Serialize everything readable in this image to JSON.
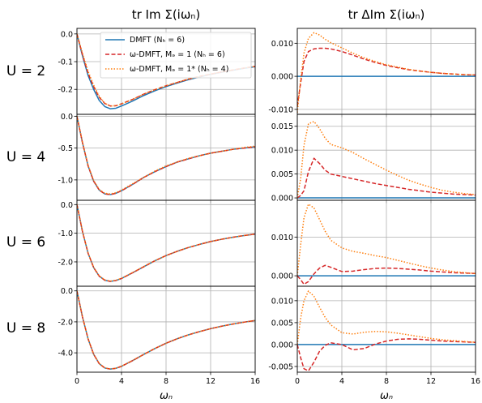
{
  "figure": {
    "col_titles": [
      "tr Im Σ(iωₙ)",
      "tr ΔIm Σ(iωₙ)"
    ],
    "row_labels": [
      "U = 2",
      "U = 4",
      "U = 6",
      "U = 8"
    ],
    "xlabel": "ωₙ"
  },
  "legend": {
    "placement": "top-right of first panel",
    "entries": [
      {
        "label": "DMFT (Nₕ = 6)",
        "color": "#1f77b4",
        "dash": "solid"
      },
      {
        "label": "ω-DMFT, Mₔ = 1 (Nₕ = 6)",
        "color": "#d62728",
        "dash": "dashed"
      },
      {
        "label": "ω-DMFT, Mₔ = 1* (Nₕ = 4)",
        "color": "#ff7f0e",
        "dash": "dotted"
      }
    ]
  },
  "chart_data": [
    {
      "type": "line",
      "panel": "U=2 tr Im Sigma",
      "grid": true,
      "xlim": [
        0,
        16
      ],
      "ylim": [
        -0.29,
        0.02
      ],
      "yticks": [
        0.0,
        -0.1,
        -0.2
      ],
      "ytick_labels": [
        "0.0",
        "-0.1",
        "-0.2"
      ],
      "xticks": [
        0,
        4,
        8,
        12,
        16
      ],
      "xtick_labels": [
        "0",
        "4",
        "8",
        "12",
        "16"
      ],
      "show_xticklabels": false,
      "x": [
        0,
        0.5,
        1,
        1.5,
        2,
        2.5,
        3,
        3.5,
        4,
        5,
        6,
        7,
        8,
        9,
        10,
        11,
        12,
        13,
        14,
        15,
        16
      ],
      "series": [
        {
          "name": "DMFT (Nₕ = 6)",
          "values": [
            0.0,
            -0.08,
            -0.15,
            -0.2,
            -0.24,
            -0.262,
            -0.27,
            -0.268,
            -0.26,
            -0.242,
            -0.222,
            -0.205,
            -0.19,
            -0.177,
            -0.165,
            -0.155,
            -0.146,
            -0.138,
            -0.131,
            -0.124,
            -0.118
          ]
        },
        {
          "name": "ω-DMFT, Mₔ = 1 (Nₕ = 6)",
          "values": [
            0.0,
            -0.076,
            -0.142,
            -0.19,
            -0.229,
            -0.251,
            -0.26,
            -0.259,
            -0.252,
            -0.236,
            -0.217,
            -0.201,
            -0.187,
            -0.175,
            -0.163,
            -0.153,
            -0.145,
            -0.137,
            -0.13,
            -0.123,
            -0.117
          ]
        },
        {
          "name": "ω-DMFT, Mₔ = 1* (Nₕ = 4)",
          "values": [
            0.0,
            -0.07,
            -0.135,
            -0.185,
            -0.225,
            -0.25,
            -0.26,
            -0.259,
            -0.252,
            -0.236,
            -0.217,
            -0.201,
            -0.187,
            -0.175,
            -0.163,
            -0.153,
            -0.145,
            -0.137,
            -0.13,
            -0.123,
            -0.117
          ]
        }
      ]
    },
    {
      "type": "line",
      "panel": "U=2 tr Delta Im Sigma",
      "grid": true,
      "xlim": [
        0,
        16
      ],
      "ylim": [
        -0.0115,
        0.0145
      ],
      "yticks": [
        0.01,
        0.0,
        -0.01
      ],
      "ytick_labels": [
        "0.010",
        "0.000",
        "-0.010"
      ],
      "xticks": [
        0,
        4,
        8,
        12,
        16
      ],
      "xtick_labels": [
        "0",
        "4",
        "8",
        "12",
        "16"
      ],
      "show_xticklabels": false,
      "x": [
        0,
        0.3,
        0.6,
        1,
        1.5,
        2,
        2.5,
        3,
        4,
        5,
        6,
        7,
        8,
        9,
        10,
        11,
        12,
        13,
        14,
        15,
        16
      ],
      "series": [
        {
          "name": "DMFT (Nₕ = 6)",
          "values": [
            0,
            0,
            0,
            0,
            0,
            0,
            0,
            0,
            0,
            0,
            0,
            0,
            0,
            0,
            0,
            0,
            0,
            0,
            0,
            0,
            0
          ]
        },
        {
          "name": "ω-DMFT, Mₔ = 1 (Nₕ = 6)",
          "values": [
            -0.009,
            -0.002,
            0.0045,
            0.0075,
            0.0083,
            0.0085,
            0.0085,
            0.0083,
            0.0075,
            0.0064,
            0.0052,
            0.0042,
            0.0033,
            0.0026,
            0.002,
            0.0016,
            0.0012,
            0.0009,
            0.0007,
            0.0005,
            0.0004
          ]
        },
        {
          "name": "ω-DMFT, Mₔ = 1* (Nₕ = 4)",
          "values": [
            -0.011,
            -0.001,
            0.007,
            0.0115,
            0.0132,
            0.0125,
            0.0112,
            0.0102,
            0.0086,
            0.007,
            0.0056,
            0.0045,
            0.0035,
            0.0028,
            0.0021,
            0.0016,
            0.0012,
            0.0009,
            0.0007,
            0.0005,
            0.0004
          ]
        }
      ]
    },
    {
      "type": "line",
      "panel": "U=4 tr Im Sigma",
      "grid": true,
      "xlim": [
        0,
        16
      ],
      "ylim": [
        -1.32,
        0.03
      ],
      "yticks": [
        0.0,
        -0.5,
        -1.0
      ],
      "ytick_labels": [
        "0.0",
        "-0.5",
        "-1.0"
      ],
      "xticks": [
        0,
        4,
        8,
        12,
        16
      ],
      "xtick_labels": [
        "0",
        "4",
        "8",
        "12",
        "16"
      ],
      "show_xticklabels": false,
      "x": [
        0,
        0.5,
        1,
        1.5,
        2,
        2.5,
        3,
        3.5,
        4,
        5,
        6,
        7,
        8,
        9,
        10,
        11,
        12,
        13,
        14,
        15,
        16
      ],
      "series": [
        {
          "name": "DMFT (Nₕ = 6)",
          "values": [
            0.0,
            -0.42,
            -0.78,
            -1.02,
            -1.16,
            -1.22,
            -1.23,
            -1.21,
            -1.17,
            -1.07,
            -0.96,
            -0.87,
            -0.79,
            -0.72,
            -0.67,
            -0.62,
            -0.58,
            -0.55,
            -0.52,
            -0.5,
            -0.48
          ]
        },
        {
          "name": "ω-DMFT, Mₔ = 1 (Nₕ = 6)",
          "values": [
            0.0,
            -0.42,
            -0.78,
            -1.02,
            -1.16,
            -1.22,
            -1.23,
            -1.21,
            -1.17,
            -1.07,
            -0.96,
            -0.87,
            -0.79,
            -0.72,
            -0.67,
            -0.62,
            -0.58,
            -0.55,
            -0.52,
            -0.5,
            -0.48
          ]
        },
        {
          "name": "ω-DMFT, Mₔ = 1* (Nₕ = 4)",
          "values": [
            0.0,
            -0.41,
            -0.77,
            -1.01,
            -1.15,
            -1.21,
            -1.22,
            -1.2,
            -1.16,
            -1.06,
            -0.96,
            -0.86,
            -0.78,
            -0.72,
            -0.66,
            -0.62,
            -0.58,
            -0.55,
            -0.52,
            -0.49,
            -0.47
          ]
        }
      ]
    },
    {
      "type": "line",
      "panel": "U=4 tr Delta Im Sigma",
      "grid": true,
      "xlim": [
        0,
        16
      ],
      "ylim": [
        -0.0005,
        0.0175
      ],
      "yticks": [
        0.015,
        0.01,
        0.005,
        0.0
      ],
      "ytick_labels": [
        "0.015",
        "0.010",
        "0.005",
        "0.000"
      ],
      "xticks": [
        0,
        4,
        8,
        12,
        16
      ],
      "xtick_labels": [
        "0",
        "4",
        "8",
        "12",
        "16"
      ],
      "show_xticklabels": false,
      "x": [
        0,
        0.3,
        0.6,
        1,
        1.5,
        2,
        2.5,
        3,
        4,
        5,
        6,
        7,
        8,
        9,
        10,
        11,
        12,
        13,
        14,
        15,
        16
      ],
      "series": [
        {
          "name": "DMFT (Nₕ = 6)",
          "values": [
            0,
            0,
            0,
            0,
            0,
            0,
            0,
            0,
            0,
            0,
            0,
            0,
            0,
            0,
            0,
            0,
            0,
            0,
            0,
            0,
            0
          ]
        },
        {
          "name": "ω-DMFT, Mₔ = 1 (Nₕ = 6)",
          "values": [
            0.0,
            0.0005,
            0.0015,
            0.0055,
            0.0083,
            0.0072,
            0.0058,
            0.005,
            0.0045,
            0.004,
            0.0035,
            0.003,
            0.0026,
            0.0022,
            0.0018,
            0.0015,
            0.0012,
            0.001,
            0.0008,
            0.0007,
            0.0006
          ]
        },
        {
          "name": "ω-DMFT, Mₔ = 1* (Nₕ = 4)",
          "values": [
            0.0,
            0.004,
            0.011,
            0.0155,
            0.016,
            0.0145,
            0.0125,
            0.0112,
            0.0105,
            0.0095,
            0.0082,
            0.007,
            0.0058,
            0.0047,
            0.0037,
            0.0029,
            0.0022,
            0.0016,
            0.0012,
            0.0009,
            0.0007
          ]
        }
      ]
    },
    {
      "type": "line",
      "panel": "U=6 tr Im Sigma",
      "grid": true,
      "xlim": [
        0,
        16
      ],
      "ylim": [
        -2.85,
        0.15
      ],
      "yticks": [
        0.0,
        -1.0,
        -2.0
      ],
      "ytick_labels": [
        "0.0",
        "-1.0",
        "-2.0"
      ],
      "xticks": [
        0,
        4,
        8,
        12,
        16
      ],
      "xtick_labels": [
        "0",
        "4",
        "8",
        "12",
        "16"
      ],
      "show_xticklabels": false,
      "x": [
        0,
        0.5,
        1,
        1.5,
        2,
        2.5,
        3,
        3.5,
        4,
        5,
        6,
        7,
        8,
        9,
        10,
        11,
        12,
        13,
        14,
        15,
        16
      ],
      "series": [
        {
          "name": "DMFT (Nₕ = 6)",
          "values": [
            0.0,
            -0.95,
            -1.7,
            -2.2,
            -2.5,
            -2.64,
            -2.68,
            -2.65,
            -2.58,
            -2.38,
            -2.17,
            -1.96,
            -1.78,
            -1.63,
            -1.5,
            -1.39,
            -1.29,
            -1.21,
            -1.14,
            -1.08,
            -1.03
          ]
        },
        {
          "name": "ω-DMFT, Mₔ = 1 (Nₕ = 6)",
          "values": [
            0.0,
            -0.95,
            -1.7,
            -2.2,
            -2.5,
            -2.64,
            -2.68,
            -2.65,
            -2.58,
            -2.38,
            -2.17,
            -1.96,
            -1.78,
            -1.63,
            -1.5,
            -1.39,
            -1.29,
            -1.21,
            -1.14,
            -1.08,
            -1.03
          ]
        },
        {
          "name": "ω-DMFT, Mₔ = 1* (Nₕ = 4)",
          "values": [
            0.0,
            -0.94,
            -1.69,
            -2.19,
            -2.49,
            -2.63,
            -2.67,
            -2.64,
            -2.57,
            -2.37,
            -2.16,
            -1.96,
            -1.78,
            -1.63,
            -1.5,
            -1.39,
            -1.29,
            -1.21,
            -1.14,
            -1.08,
            -1.03
          ]
        }
      ]
    },
    {
      "type": "line",
      "panel": "U=6 tr Delta Im Sigma",
      "grid": true,
      "xlim": [
        0,
        16
      ],
      "ylim": [
        -0.0027,
        0.0195
      ],
      "yticks": [
        0.01,
        0.0
      ],
      "ytick_labels": [
        "0.010",
        "0.000"
      ],
      "xticks": [
        0,
        4,
        8,
        12,
        16
      ],
      "xtick_labels": [
        "0",
        "4",
        "8",
        "12",
        "16"
      ],
      "show_xticklabels": false,
      "x": [
        0,
        0.3,
        0.6,
        1,
        1.5,
        2,
        2.5,
        3,
        4,
        5,
        6,
        7,
        8,
        9,
        10,
        11,
        12,
        13,
        14,
        15,
        16
      ],
      "series": [
        {
          "name": "DMFT (Nₕ = 6)",
          "values": [
            0,
            0,
            0,
            0,
            0,
            0,
            0,
            0,
            0,
            0,
            0,
            0,
            0,
            0,
            0,
            0,
            0,
            0,
            0,
            0,
            0
          ]
        },
        {
          "name": "ω-DMFT, Mₔ = 1 (Nₕ = 6)",
          "values": [
            0.0,
            -0.001,
            -0.0022,
            -0.0015,
            0.0005,
            0.002,
            0.0027,
            0.0022,
            0.0011,
            0.0012,
            0.0016,
            0.0019,
            0.002,
            0.0019,
            0.0017,
            0.0015,
            0.0012,
            0.001,
            0.0008,
            0.0007,
            0.0006
          ]
        },
        {
          "name": "ω-DMFT, Mₔ = 1* (Nₕ = 4)",
          "values": [
            0.0,
            0.008,
            0.015,
            0.0185,
            0.0175,
            0.0145,
            0.0115,
            0.0092,
            0.0072,
            0.0063,
            0.0058,
            0.0052,
            0.0047,
            0.004,
            0.0033,
            0.0026,
            0.002,
            0.0015,
            0.0011,
            0.0008,
            0.0006
          ]
        }
      ]
    },
    {
      "type": "line",
      "panel": "U=8 tr Im Sigma",
      "grid": true,
      "xlim": [
        0,
        16
      ],
      "ylim": [
        -5.25,
        0.3
      ],
      "yticks": [
        0.0,
        -2.0,
        -4.0
      ],
      "ytick_labels": [
        "0.0",
        "-2.0",
        "-4.0"
      ],
      "xticks": [
        0,
        4,
        8,
        12,
        16
      ],
      "xtick_labels": [
        "0",
        "4",
        "8",
        "12",
        "16"
      ],
      "show_xticklabels": true,
      "x": [
        0,
        0.5,
        1,
        1.5,
        2,
        2.5,
        3,
        3.5,
        4,
        5,
        6,
        7,
        8,
        9,
        10,
        11,
        12,
        13,
        14,
        15,
        16
      ],
      "series": [
        {
          "name": "DMFT (Nₕ = 6)",
          "values": [
            0.0,
            -1.7,
            -3.1,
            -4.1,
            -4.7,
            -4.98,
            -5.05,
            -5.0,
            -4.87,
            -4.5,
            -4.1,
            -3.72,
            -3.38,
            -3.09,
            -2.84,
            -2.63,
            -2.44,
            -2.28,
            -2.14,
            -2.02,
            -1.91
          ]
        },
        {
          "name": "ω-DMFT, Mₔ = 1 (Nₕ = 6)",
          "values": [
            0.0,
            -1.7,
            -3.1,
            -4.1,
            -4.7,
            -4.98,
            -5.05,
            -5.0,
            -4.87,
            -4.5,
            -4.1,
            -3.72,
            -3.38,
            -3.09,
            -2.84,
            -2.63,
            -2.44,
            -2.28,
            -2.14,
            -2.02,
            -1.91
          ]
        },
        {
          "name": "ω-DMFT, Mₔ = 1* (Nₕ = 4)",
          "values": [
            0.0,
            -1.69,
            -3.09,
            -4.09,
            -4.69,
            -4.97,
            -5.04,
            -4.99,
            -4.86,
            -4.49,
            -4.1,
            -3.72,
            -3.38,
            -3.09,
            -2.84,
            -2.63,
            -2.44,
            -2.28,
            -2.14,
            -2.02,
            -1.91
          ]
        }
      ]
    },
    {
      "type": "line",
      "panel": "U=8 tr Delta Im Sigma",
      "grid": true,
      "xlim": [
        0,
        16
      ],
      "ylim": [
        -0.0063,
        0.0133
      ],
      "yticks": [
        0.01,
        0.005,
        0.0,
        -0.005
      ],
      "ytick_labels": [
        "0.010",
        "0.005",
        "0.000",
        "-0.005"
      ],
      "xticks": [
        0,
        4,
        8,
        12,
        16
      ],
      "xtick_labels": [
        "0",
        "4",
        "8",
        "12",
        "16"
      ],
      "show_xticklabels": true,
      "x": [
        0,
        0.3,
        0.6,
        1,
        1.5,
        2,
        2.5,
        3,
        4,
        5,
        6,
        7,
        8,
        9,
        10,
        11,
        12,
        13,
        14,
        15,
        16
      ],
      "series": [
        {
          "name": "DMFT (Nₕ = 6)",
          "values": [
            0,
            0,
            0,
            0,
            0,
            0,
            0,
            0,
            0,
            0,
            0,
            0,
            0,
            0,
            0,
            0,
            0,
            0,
            0,
            0,
            0
          ]
        },
        {
          "name": "ω-DMFT, Mₔ = 1 (Nₕ = 6)",
          "values": [
            0.0,
            -0.003,
            -0.0055,
            -0.006,
            -0.004,
            -0.0015,
            -0.0002,
            0.0004,
            0.0,
            -0.0012,
            -0.0009,
            0.0001,
            0.0008,
            0.0012,
            0.0013,
            0.0012,
            0.001,
            0.0008,
            0.0007,
            0.0006,
            0.0005
          ]
        },
        {
          "name": "ω-DMFT, Mₔ = 1* (Nₕ = 4)",
          "values": [
            0.0,
            0.006,
            0.01,
            0.0122,
            0.011,
            0.0085,
            0.0062,
            0.0045,
            0.0027,
            0.0024,
            0.0028,
            0.003,
            0.0029,
            0.0026,
            0.0022,
            0.0018,
            0.0014,
            0.0011,
            0.0009,
            0.0007,
            0.0005
          ]
        }
      ]
    }
  ]
}
